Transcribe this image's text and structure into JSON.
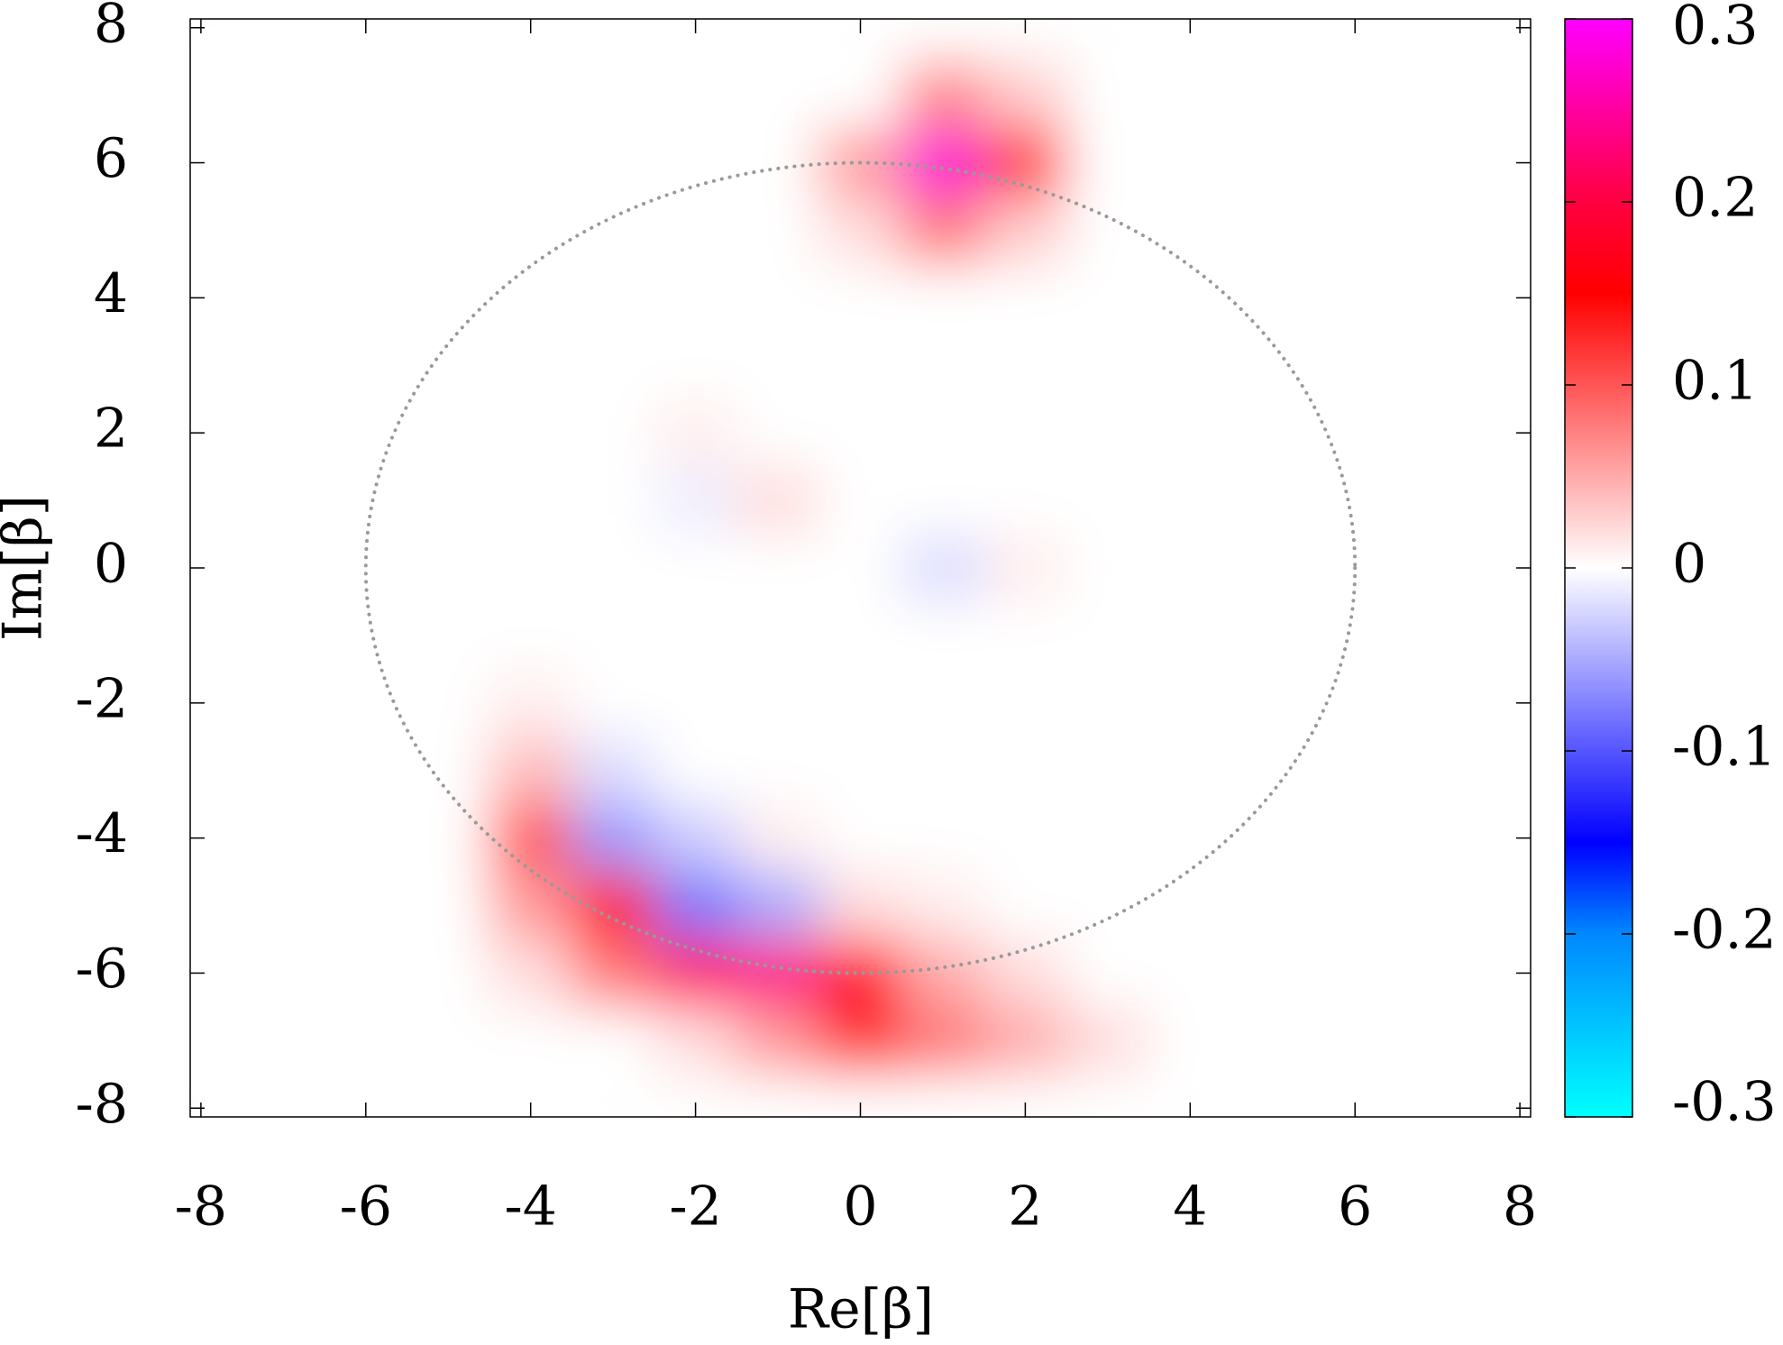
{
  "chart_data": {
    "type": "heatmap",
    "x_label": "Re[β]",
    "y_label": "Im[β]",
    "x": [
      -8,
      -7,
      -6,
      -5,
      -4,
      -3,
      -2,
      -1,
      0,
      1,
      2,
      3,
      4,
      5,
      6,
      7,
      8
    ],
    "y": [
      -8,
      -7,
      -6,
      -5,
      -4,
      -3,
      -2,
      -1,
      0,
      1,
      2,
      3,
      4,
      5,
      6,
      7,
      8
    ],
    "z": [
      [
        0,
        0,
        0,
        0,
        0,
        0,
        0,
        0,
        0,
        0,
        0,
        0,
        0,
        0,
        0,
        0,
        0
      ],
      [
        0,
        0,
        0,
        0,
        0,
        0,
        0.02,
        0.06,
        0.12,
        0.08,
        0.05,
        0.02,
        0,
        0,
        0,
        0,
        0
      ],
      [
        0,
        0,
        0,
        0,
        0.02,
        0.08,
        0.22,
        0.24,
        0.18,
        0.05,
        0.02,
        0,
        0,
        0,
        0,
        0,
        0
      ],
      [
        0,
        0,
        0,
        0,
        0.06,
        0.18,
        -0.08,
        -0.05,
        0.02,
        0.01,
        0,
        0,
        0,
        0,
        0,
        0,
        0
      ],
      [
        0,
        0,
        0,
        0,
        0.1,
        -0.06,
        -0.03,
        0.01,
        0,
        0,
        0,
        0,
        0,
        0,
        0,
        0,
        0
      ],
      [
        0,
        0,
        0,
        0,
        0.04,
        -0.02,
        0,
        0,
        0,
        0,
        0,
        0,
        0,
        0,
        0,
        0,
        0
      ],
      [
        0,
        0,
        0,
        0,
        0.01,
        0,
        0,
        0,
        0,
        0,
        0,
        0,
        0,
        0,
        0,
        0,
        0
      ],
      [
        0,
        0,
        0,
        0,
        0,
        0,
        0,
        0,
        0,
        0,
        0,
        0,
        0,
        0,
        0,
        0,
        0
      ],
      [
        0,
        0,
        0,
        0,
        0,
        0,
        0,
        0,
        0,
        -0.02,
        0.01,
        0,
        0,
        0,
        0,
        0,
        0
      ],
      [
        0,
        0,
        0,
        0,
        0,
        0,
        -0.01,
        0.02,
        0,
        0,
        0,
        0,
        0,
        0,
        0,
        0,
        0
      ],
      [
        0,
        0,
        0,
        0,
        0,
        0,
        0.01,
        0,
        0,
        0,
        0,
        0,
        0,
        0,
        0,
        0,
        0
      ],
      [
        0,
        0,
        0,
        0,
        0,
        0,
        0,
        0,
        0,
        0,
        0,
        0,
        0,
        0,
        0,
        0,
        0
      ],
      [
        0,
        0,
        0,
        0,
        0,
        0,
        0,
        0,
        0,
        0,
        0,
        0,
        0,
        0,
        0,
        0,
        0
      ],
      [
        0,
        0,
        0,
        0,
        0,
        0,
        0,
        0,
        0.02,
        0.08,
        0.03,
        0,
        0,
        0,
        0,
        0,
        0
      ],
      [
        0,
        0,
        0,
        0,
        0,
        0,
        0,
        0,
        0.06,
        0.28,
        0.12,
        0,
        0,
        0,
        0,
        0,
        0
      ],
      [
        0,
        0,
        0,
        0,
        0,
        0,
        0,
        0,
        0,
        0.07,
        0.03,
        0,
        0,
        0,
        0,
        0,
        0
      ],
      [
        0,
        0,
        0,
        0,
        0,
        0,
        0,
        0,
        0,
        0,
        0,
        0,
        0,
        0,
        0,
        0,
        0
      ]
    ],
    "xlim": [
      -8.13,
      8.13
    ],
    "ylim": [
      -8.13,
      8.13
    ],
    "xticks": [
      -8,
      -6,
      -4,
      -2,
      0,
      2,
      4,
      6,
      8
    ],
    "yticks": [
      -8,
      -6,
      -4,
      -2,
      0,
      2,
      4,
      6,
      8
    ],
    "zlim": [
      -0.3,
      0.3
    ],
    "zticks": [
      -0.3,
      -0.2,
      -0.1,
      0,
      0.1,
      0.2,
      0.3
    ],
    "colormap": [
      {
        "value": -0.3,
        "color": "#00ffff"
      },
      {
        "value": -0.2,
        "color": "#0088ff"
      },
      {
        "value": -0.15,
        "color": "#0000ff"
      },
      {
        "value": 0,
        "color": "#ffffff"
      },
      {
        "value": 0.15,
        "color": "#ff0000"
      },
      {
        "value": 0.2,
        "color": "#ff0040"
      },
      {
        "value": 0.3,
        "color": "#ff00ff"
      }
    ],
    "reference_circle": {
      "radius": 6,
      "color": "#999999"
    }
  }
}
